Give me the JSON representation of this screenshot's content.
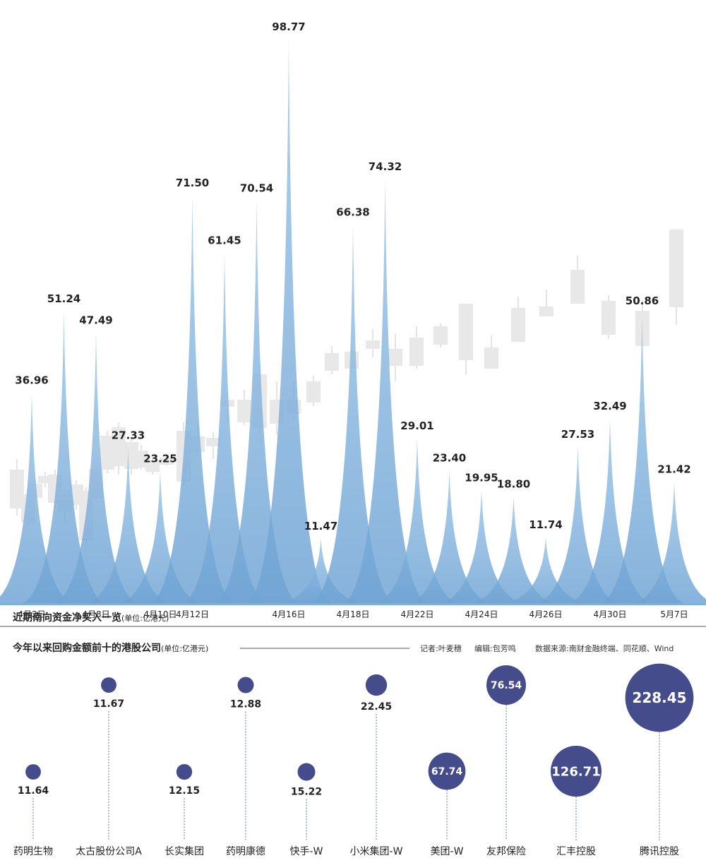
{
  "chart_data": [
    {
      "type": "area",
      "title": "近期南向资金净买入一览",
      "unit": "(单位:亿港元)",
      "series_color": "#6fa8d6",
      "values": [
        36.96,
        51.24,
        47.49,
        27.33,
        23.25,
        71.5,
        61.45,
        70.54,
        98.77,
        11.47,
        66.38,
        74.32,
        29.01,
        23.4,
        19.95,
        18.8,
        11.74,
        27.53,
        32.49,
        50.86,
        21.42
      ],
      "value_labels": [
        "36.96",
        "51.24",
        "47.49",
        "27.33",
        "23.25",
        "71.50",
        "61.45",
        "70.54",
        "98.77",
        "11.47",
        "66.38",
        "74.32",
        "29.01",
        "23.40",
        "19.95",
        "18.80",
        "11.74",
        "27.53",
        "32.49",
        "50.86",
        "21.42"
      ],
      "x_ticks": [
        "4月2日",
        "4月8日",
        "4月10日",
        "4月12日",
        "4月16日",
        "4月18日",
        "4月22日",
        "4月24日",
        "4月26日",
        "4月30日",
        "5月7日"
      ]
    },
    {
      "type": "scatter",
      "title": "今年以来回购金额前十的港股公司",
      "unit": "(单位:亿港元)",
      "bubble_color": "#444c8c",
      "companies": [
        "药明生物",
        "太古股份公司A",
        "长实集团",
        "药明康德",
        "快手-W",
        "小米集团-W",
        "美团-W",
        "友邦保险",
        "汇丰控股",
        "腾讯控股"
      ],
      "values": [
        11.64,
        11.67,
        12.15,
        12.88,
        15.22,
        22.45,
        67.74,
        76.54,
        126.71,
        228.45
      ],
      "value_labels": [
        "11.64",
        "11.67",
        "12.15",
        "12.88",
        "15.22",
        "22.45",
        "67.74",
        "76.54",
        "126.71",
        "228.45"
      ]
    }
  ],
  "credits": {
    "reporter": "记者:叶麦穗",
    "editor": "编辑:包芳鸣",
    "source": "数据来源:南财金融终端、同花顺、Wind"
  }
}
